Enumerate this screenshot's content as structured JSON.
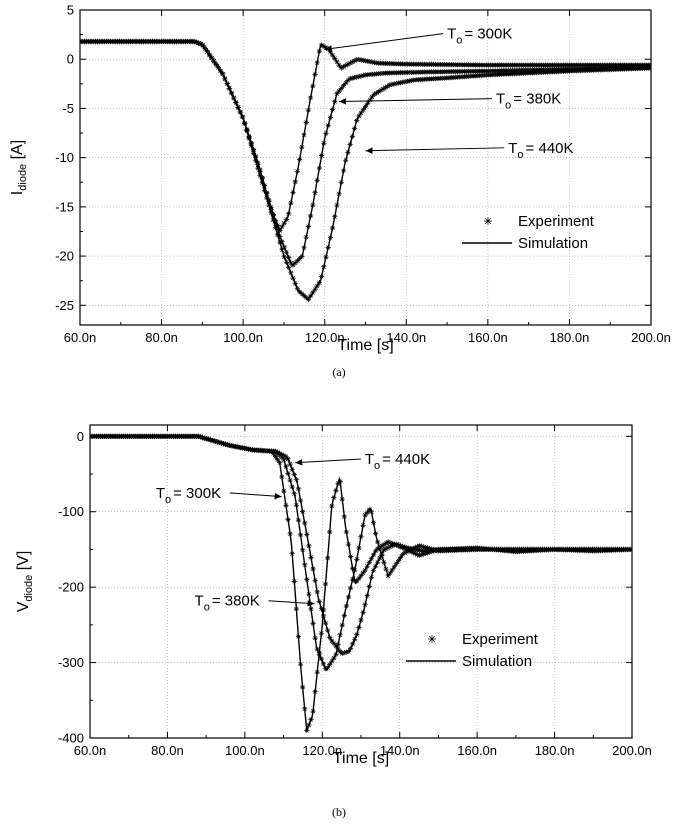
{
  "chart_data": [
    {
      "panel": "a",
      "type": "line",
      "caption": "(a)",
      "xlabel": "Time [s]",
      "ylabel_main": "I",
      "ylabel_sub": "diode",
      "ylabel_unit": " [A]",
      "xlim": [
        6e-08,
        2e-07
      ],
      "ylim": [
        -27,
        5
      ],
      "grid": true,
      "legend_placement": "lower-right",
      "x_ticks": [
        {
          "v": 6e-08,
          "label": "60.0n"
        },
        {
          "v": 8e-08,
          "label": "80.0n"
        },
        {
          "v": 1e-07,
          "label": "100.0n"
        },
        {
          "v": 1.2e-07,
          "label": "120.0n"
        },
        {
          "v": 1.4e-07,
          "label": "140.0n"
        },
        {
          "v": 1.6e-07,
          "label": "160.0n"
        },
        {
          "v": 1.8e-07,
          "label": "180.0n"
        },
        {
          "v": 2e-07,
          "label": "200.0n"
        }
      ],
      "y_ticks": [
        {
          "v": 5,
          "label": "5"
        },
        {
          "v": 0,
          "label": "0"
        },
        {
          "v": -5,
          "label": "-5"
        },
        {
          "v": -10,
          "label": "-10"
        },
        {
          "v": -15,
          "label": "-15"
        },
        {
          "v": -20,
          "label": "-20"
        },
        {
          "v": -25,
          "label": "-25"
        }
      ],
      "legend": [
        {
          "marker": "star",
          "label": "Experiment"
        },
        {
          "marker": "line",
          "label": "Simulation"
        }
      ],
      "annotations": [
        {
          "main": "T",
          "sub": "o",
          "rest": "= 300K",
          "tx": 1.5e-07,
          "ty": 2.6,
          "px": 1.2e-07,
          "py": 1.0
        },
        {
          "main": "T",
          "sub": "o",
          "rest": "= 380K",
          "tx": 1.62e-07,
          "ty": -4.0,
          "px": 1.235e-07,
          "py": -4.3
        },
        {
          "main": "T",
          "sub": "o",
          "rest": "= 440K",
          "tx": 1.65e-07,
          "ty": -9.0,
          "px": 1.3e-07,
          "py": -9.3
        }
      ],
      "series": [
        {
          "name": "T₀ = 300K",
          "x": [
            6e-08,
            8.8e-08,
            9e-08,
            9.5e-08,
            1e-07,
            1.04e-07,
            1.07e-07,
            1.09e-07,
            1.11e-07,
            1.135e-07,
            1.165e-07,
            1.19e-07,
            1.21e-07,
            1.24e-07,
            1.28e-07,
            1.33e-07,
            1.4e-07,
            1.6e-07,
            1.8e-07,
            2e-07
          ],
          "y": [
            1.8,
            1.8,
            1.5,
            -1.5,
            -6.0,
            -11.0,
            -15.5,
            -17.4,
            -16.0,
            -11.0,
            -4.0,
            1.5,
            1.0,
            -0.9,
            0.0,
            -0.4,
            -0.5,
            -0.6,
            -0.6,
            -0.6
          ]
        },
        {
          "name": "T₀ = 380K",
          "x": [
            6e-08,
            8.8e-08,
            9e-08,
            9.5e-08,
            1e-07,
            1.05e-07,
            1.09e-07,
            1.12e-07,
            1.145e-07,
            1.17e-07,
            1.2e-07,
            1.23e-07,
            1.26e-07,
            1.3e-07,
            1.35e-07,
            1.45e-07,
            1.6e-07,
            1.8e-07,
            2e-07
          ],
          "y": [
            1.8,
            1.8,
            1.5,
            -1.5,
            -6.0,
            -12.5,
            -18.0,
            -21.0,
            -20.0,
            -15.0,
            -8.0,
            -3.5,
            -2.0,
            -1.6,
            -1.4,
            -1.3,
            -1.2,
            -1.0,
            -0.8
          ]
        },
        {
          "name": "T₀ = 440K",
          "x": [
            6e-08,
            8.8e-08,
            9e-08,
            9.5e-08,
            1e-07,
            1.05e-07,
            1.1e-07,
            1.135e-07,
            1.16e-07,
            1.19e-07,
            1.22e-07,
            1.25e-07,
            1.28e-07,
            1.32e-07,
            1.36e-07,
            1.42e-07,
            1.5e-07,
            1.6e-07,
            1.8e-07,
            2e-07
          ],
          "y": [
            1.8,
            1.8,
            1.5,
            -1.5,
            -6.0,
            -13.0,
            -20.0,
            -23.5,
            -24.4,
            -22.5,
            -17.0,
            -10.5,
            -6.0,
            -3.6,
            -2.6,
            -2.1,
            -1.9,
            -1.6,
            -1.2,
            -0.9
          ]
        }
      ]
    },
    {
      "panel": "b",
      "type": "line",
      "caption": "(b)",
      "xlabel": "Time [s]",
      "ylabel_main": "V",
      "ylabel_sub": "diode",
      "ylabel_unit": " [V]",
      "xlim": [
        6e-08,
        2e-07
      ],
      "ylim": [
        -400,
        15
      ],
      "grid": true,
      "legend_placement": "lower-right",
      "x_ticks": [
        {
          "v": 6e-08,
          "label": "60.0n"
        },
        {
          "v": 8e-08,
          "label": "80.0n"
        },
        {
          "v": 1e-07,
          "label": "100.0n"
        },
        {
          "v": 1.2e-07,
          "label": "120.0n"
        },
        {
          "v": 1.4e-07,
          "label": "140.0n"
        },
        {
          "v": 1.6e-07,
          "label": "160.0n"
        },
        {
          "v": 1.8e-07,
          "label": "180.0n"
        },
        {
          "v": 2e-07,
          "label": "200.0n"
        }
      ],
      "y_ticks": [
        {
          "v": 0,
          "label": "0"
        },
        {
          "v": -100,
          "label": "-100"
        },
        {
          "v": -200,
          "label": "-200"
        },
        {
          "v": -300,
          "label": "-300"
        },
        {
          "v": -400,
          "label": "-400"
        }
      ],
      "legend": [
        {
          "marker": "star",
          "label": "Experiment"
        },
        {
          "marker": "line",
          "label": "Simulation"
        }
      ],
      "annotations": [
        {
          "main": "T",
          "sub": "o",
          "rest": "= 440K",
          "tx": 1.31e-07,
          "ty": -30,
          "px": 1.13e-07,
          "py": -35
        },
        {
          "main": "T",
          "sub": "o",
          "rest": "= 300K",
          "tx": 7.7e-08,
          "ty": -75,
          "px": 1.095e-07,
          "py": -80
        },
        {
          "main": "T",
          "sub": "o",
          "rest": "= 380K",
          "tx": 8.7e-08,
          "ty": -218,
          "px": 1.18e-07,
          "py": -222
        }
      ],
      "series": [
        {
          "name": "T₀ = 300K",
          "x": [
            6e-08,
            8.8e-08,
            9.2e-08,
            9.6e-08,
            1.02e-07,
            1.07e-07,
            1.09e-07,
            1.12e-07,
            1.145e-07,
            1.16e-07,
            1.175e-07,
            1.2e-07,
            1.225e-07,
            1.245e-07,
            1.26e-07,
            1.285e-07,
            1.31e-07,
            1.34e-07,
            1.37e-07,
            1.41e-07,
            1.45e-07,
            1.5e-07,
            1.6e-07,
            1.7e-07,
            1.8e-07,
            1.9e-07,
            2e-07
          ],
          "y": [
            0,
            0,
            -6,
            -12,
            -18,
            -20,
            -35,
            -140,
            -310,
            -390,
            -370,
            -250,
            -90,
            -55,
            -120,
            -195,
            -178,
            -150,
            -140,
            -148,
            -158,
            -150,
            -148,
            -153,
            -150,
            -152,
            -150
          ]
        },
        {
          "name": "T₀ = 380K",
          "x": [
            6e-08,
            8.8e-08,
            9.2e-08,
            9.6e-08,
            1.02e-07,
            1.08e-07,
            1.1e-07,
            1.13e-07,
            1.16e-07,
            1.185e-07,
            1.21e-07,
            1.235e-07,
            1.26e-07,
            1.285e-07,
            1.31e-07,
            1.325e-07,
            1.34e-07,
            1.37e-07,
            1.41e-07,
            1.45e-07,
            1.5e-07,
            1.6e-07,
            1.8e-07,
            2e-07
          ],
          "y": [
            0,
            0,
            -6,
            -12,
            -18,
            -20,
            -30,
            -80,
            -190,
            -280,
            -310,
            -290,
            -230,
            -175,
            -105,
            -95,
            -135,
            -185,
            -155,
            -145,
            -152,
            -150,
            -150,
            -150
          ]
        },
        {
          "name": "T₀ = 440K",
          "x": [
            6e-08,
            8.8e-08,
            9.2e-08,
            9.6e-08,
            1.02e-07,
            1.08e-07,
            1.11e-07,
            1.135e-07,
            1.16e-07,
            1.19e-07,
            1.22e-07,
            1.25e-07,
            1.27e-07,
            1.29e-07,
            1.31e-07,
            1.33e-07,
            1.36e-07,
            1.39e-07,
            1.42e-07,
            1.46e-07,
            1.5e-07,
            1.55e-07,
            1.6e-07,
            1.8e-07,
            2e-07
          ],
          "y": [
            0,
            0,
            -6,
            -12,
            -18,
            -20,
            -28,
            -60,
            -130,
            -215,
            -268,
            -288,
            -285,
            -262,
            -225,
            -180,
            -150,
            -143,
            -148,
            -152,
            -150,
            -150,
            -150,
            -150,
            -150
          ]
        }
      ]
    }
  ]
}
